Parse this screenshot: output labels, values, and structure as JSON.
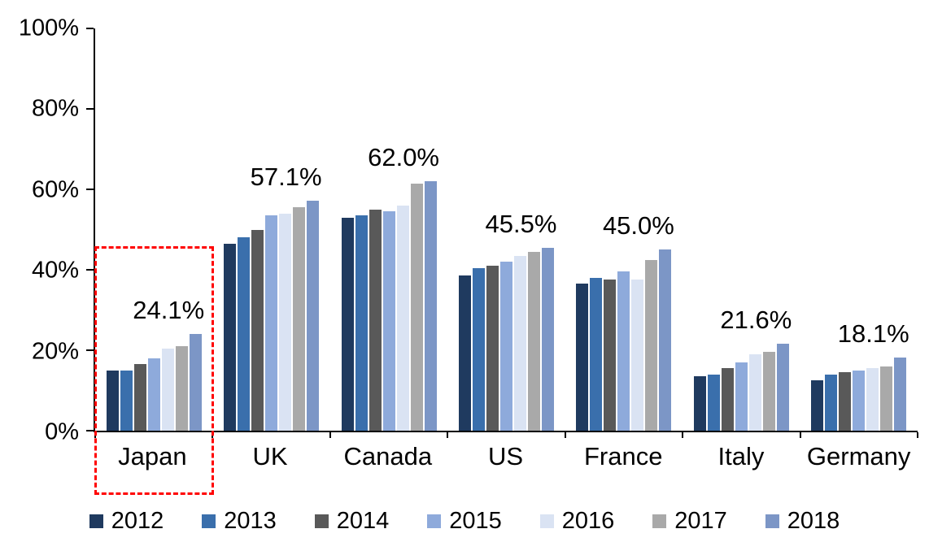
{
  "chart_data": {
    "type": "bar",
    "title": "",
    "categories": [
      "Japan",
      "UK",
      "Canada",
      "US",
      "France",
      "Italy",
      "Germany"
    ],
    "series": [
      {
        "name": "2012",
        "color": "#1F3A5F",
        "values": [
          15.0,
          46.5,
          53.0,
          38.5,
          36.5,
          13.5,
          12.5
        ]
      },
      {
        "name": "2013",
        "color": "#3A6FAC",
        "values": [
          15.0,
          48.0,
          53.5,
          40.5,
          38.0,
          14.0,
          14.0
        ]
      },
      {
        "name": "2014",
        "color": "#595959",
        "values": [
          16.5,
          50.0,
          55.0,
          41.0,
          37.5,
          15.5,
          14.5
        ]
      },
      {
        "name": "2015",
        "color": "#8EAADB",
        "values": [
          18.0,
          53.5,
          54.5,
          42.0,
          39.5,
          17.0,
          15.0
        ]
      },
      {
        "name": "2016",
        "color": "#DAE3F3",
        "values": [
          20.5,
          54.0,
          56.0,
          43.5,
          37.5,
          19.0,
          15.5
        ]
      },
      {
        "name": "2017",
        "color": "#A9A9A9",
        "values": [
          21.0,
          55.5,
          61.5,
          44.5,
          42.5,
          19.5,
          16.0
        ]
      },
      {
        "name": "2018",
        "color": "#7C96C6",
        "values": [
          24.1,
          57.1,
          62.0,
          45.5,
          45.0,
          21.6,
          18.1
        ]
      }
    ],
    "data_labels": [
      "24.1%",
      "57.1%",
      "62.0%",
      "45.5%",
      "45.0%",
      "21.6%",
      "18.1%"
    ],
    "ylim": [
      0,
      100
    ],
    "yticks": [
      0,
      20,
      40,
      60,
      80,
      100
    ],
    "ytick_labels": [
      "0%",
      "20%",
      "40%",
      "60%",
      "80%",
      "100%"
    ],
    "grid": false,
    "legend_position": "bottom",
    "highlight_box": {
      "category": "Japan",
      "color": "#FF0000",
      "style": "dashed"
    }
  }
}
